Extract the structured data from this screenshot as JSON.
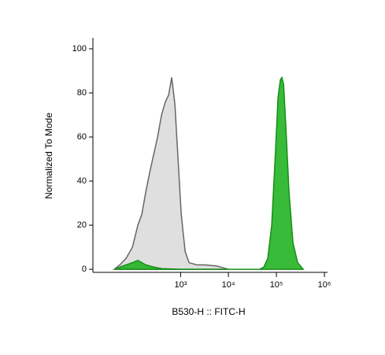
{
  "chart_data": {
    "type": "area",
    "x_label": "B530-H :: FITC-H",
    "y_label": "Normalized To Mode",
    "xscale": "biexponential",
    "xlim": [
      -650,
      1160000
    ],
    "xticks": [
      {
        "value": 1000,
        "label": "10³"
      },
      {
        "value": 10000,
        "label": "10⁴"
      },
      {
        "value": 100000,
        "label": "10⁵"
      },
      {
        "value": 1000000,
        "label": "10⁶"
      }
    ],
    "ylim": [
      -1.4,
      105
    ],
    "yticks": [
      0,
      20,
      40,
      60,
      80,
      100
    ],
    "series": [
      {
        "color": "#dcdcdc",
        "stroke": "#666666",
        "x": [
          -196,
          -128,
          -61,
          0,
          53,
          94,
          137,
          186,
          241,
          305,
          380,
          466,
          550,
          644,
          754,
          882,
          1030,
          1248,
          1508,
          2200,
          3220,
          5680,
          10000
        ],
        "values": [
          0,
          2,
          5,
          10,
          20,
          25,
          35,
          44,
          52,
          60,
          70,
          76,
          79,
          87,
          75,
          50,
          25,
          8,
          3,
          2,
          2,
          1.5,
          0
        ]
      },
      {
        "color": "#22b422",
        "stroke": "#168f16",
        "x": [
          -196,
          -128,
          -61,
          0,
          53,
          94,
          137,
          241,
          380,
          1030,
          45200,
          54700,
          66100,
          79800,
          96400,
          108000,
          121000,
          130000,
          141000,
          157000,
          183000,
          221000,
          277000,
          361000
        ],
        "values": [
          0,
          1,
          2,
          3,
          4,
          3,
          2,
          1,
          0.3,
          0,
          0,
          1,
          5,
          20,
          55,
          78,
          86,
          87,
          84,
          65,
          35,
          12,
          3,
          0
        ]
      }
    ]
  }
}
